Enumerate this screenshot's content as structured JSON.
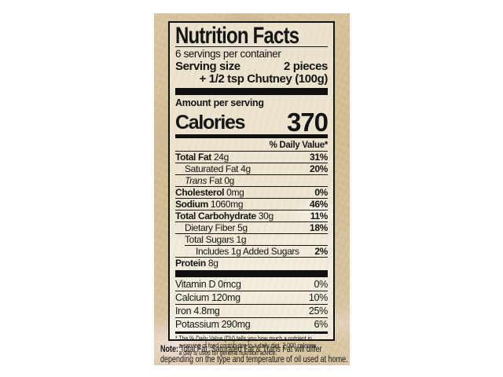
{
  "colors": {
    "paper": "#d5c096",
    "label_background": "#ede5d1",
    "ink": "#101010"
  },
  "label": {
    "title": "Nutrition Facts",
    "servings_per_container": "6 servings per container",
    "serving_size": {
      "label": "Serving size",
      "value": "2 pieces",
      "value_line2": "+ 1/2 tsp Chutney (100g)"
    },
    "amount_per_serving": "Amount per serving",
    "calories": {
      "label": "Calories",
      "value": "370"
    },
    "daily_value_header": "% Daily Value*",
    "nutrients": [
      {
        "name": "Total Fat",
        "amount": "24g",
        "dv": "31%"
      },
      {
        "name": "Saturated Fat",
        "amount": "4g",
        "dv": "20%"
      },
      {
        "name_italic": "Trans",
        "name": "Fat",
        "amount": "0g",
        "dv": ""
      },
      {
        "name": "Cholesterol",
        "amount": "0mg",
        "dv": "0%"
      },
      {
        "name": "Sodium",
        "amount": "1060mg",
        "dv": "46%"
      },
      {
        "name": "Total Carbohydrate",
        "amount": "30g",
        "dv": "11%"
      },
      {
        "name": "Dietary Fiber",
        "amount": "5g",
        "dv": "18%"
      },
      {
        "name": "Total Sugars",
        "amount": "1g",
        "dv": ""
      },
      {
        "name": "Includes 1g Added Sugars",
        "amount": "",
        "dv": "2%"
      },
      {
        "name": "Protein",
        "amount": "8g",
        "dv": ""
      }
    ],
    "vitamins": [
      {
        "name": "Vitamin D",
        "amount": "0mcg",
        "dv": "0%"
      },
      {
        "name": "Calcium",
        "amount": "120mg",
        "dv": "10%"
      },
      {
        "name": "Iron",
        "amount": "4.8mg",
        "dv": "25%"
      },
      {
        "name": "Potassium",
        "amount": "290mg",
        "dv": "6%"
      }
    ],
    "footnote_lines": [
      "* The % Daily Value (DV) tells you how much a nutrient in",
      "a serving of food contributes to a daily diet. 2,000 calories",
      "a day is used for general nutrition advice."
    ],
    "note": {
      "label": "Note:",
      "line1": "Total Fat, Saturated Fat & Trans Fat will differ",
      "line2": "depending on the type and temperature of oil used at home."
    }
  }
}
